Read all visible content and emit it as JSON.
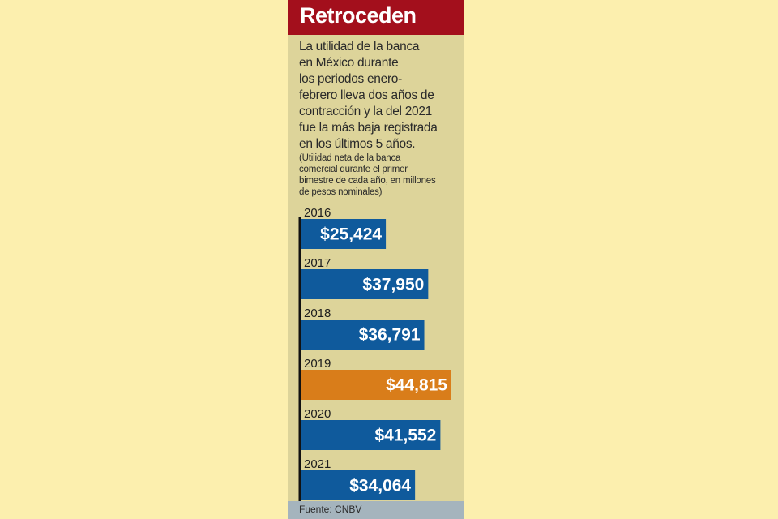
{
  "title": "Retroceden",
  "subtitle": "La utilidad de la banca\nen México durante\nlos periodos enero-\nfebrero lleva dos años de\ncontracción y la del 2021\nfue la más baja registrada\nen los últimos 5 años.",
  "note": "(Utilidad neta de la banca\ncomercial durante el primer\nbimestre de cada año, en millones\nde pesos nominales)",
  "source": "Fuente: CNBV",
  "colors": {
    "bar": "#0f5a9c",
    "highlight": "#d97d1a",
    "title_bg": "#a30f1c",
    "panel_bg": "#ddd49a",
    "page_bg": "#fcefae",
    "footer_bg": "#a5b4bd"
  },
  "chart_data": {
    "type": "bar",
    "orientation": "horizontal",
    "categories": [
      "2016",
      "2017",
      "2018",
      "2019",
      "2020",
      "2021"
    ],
    "values": [
      25424,
      37950,
      36791,
      44815,
      41552,
      34064
    ],
    "value_labels": [
      "$25,424",
      "$37,950",
      "$36,791",
      "$44,815",
      "$41,552",
      "$34,064"
    ],
    "highlight_category": "2019",
    "grid": false,
    "legend": "none"
  }
}
